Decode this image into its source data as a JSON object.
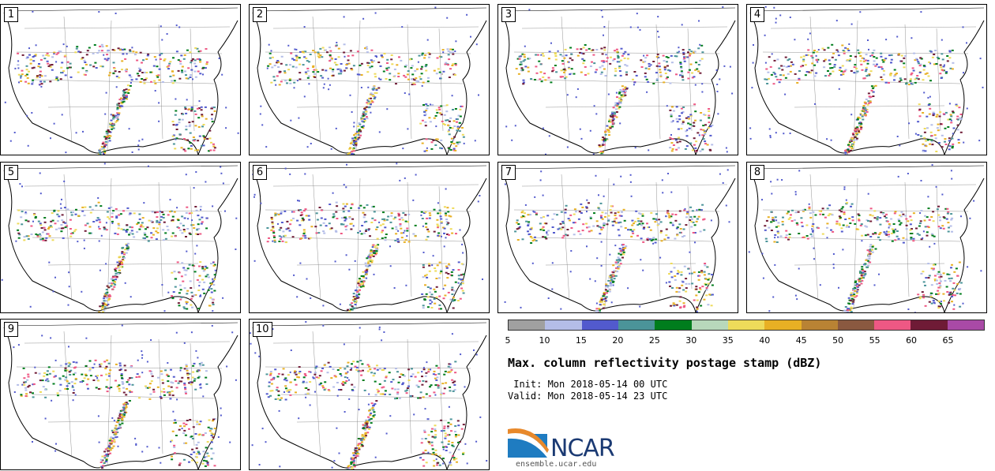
{
  "panels": [
    {
      "label": "1"
    },
    {
      "label": "2"
    },
    {
      "label": "3"
    },
    {
      "label": "4"
    },
    {
      "label": "5"
    },
    {
      "label": "6"
    },
    {
      "label": "7"
    },
    {
      "label": "8"
    },
    {
      "label": "9"
    },
    {
      "label": "10"
    }
  ],
  "legend": {
    "colors": [
      "#a0a0a0",
      "#b4bde8",
      "#525acd",
      "#4b9499",
      "#007d1d",
      "#b8d8bb",
      "#eedb5a",
      "#e8b024",
      "#b98334",
      "#8a5940",
      "#ee5884",
      "#6f1b36",
      "#a94aa6"
    ],
    "ticks": [
      "5",
      "10",
      "15",
      "20",
      "25",
      "30",
      "35",
      "40",
      "45",
      "50",
      "55",
      "60",
      "65"
    ]
  },
  "title": "Max. column reflectivity postage stamp (dBZ)",
  "init": " Init: Mon 2018-05-14 00 UTC",
  "valid": "Valid: Mon 2018-05-14 23 UTC",
  "logo": {
    "text": "NCAR",
    "url": "ensemble.ucar.edu"
  }
}
